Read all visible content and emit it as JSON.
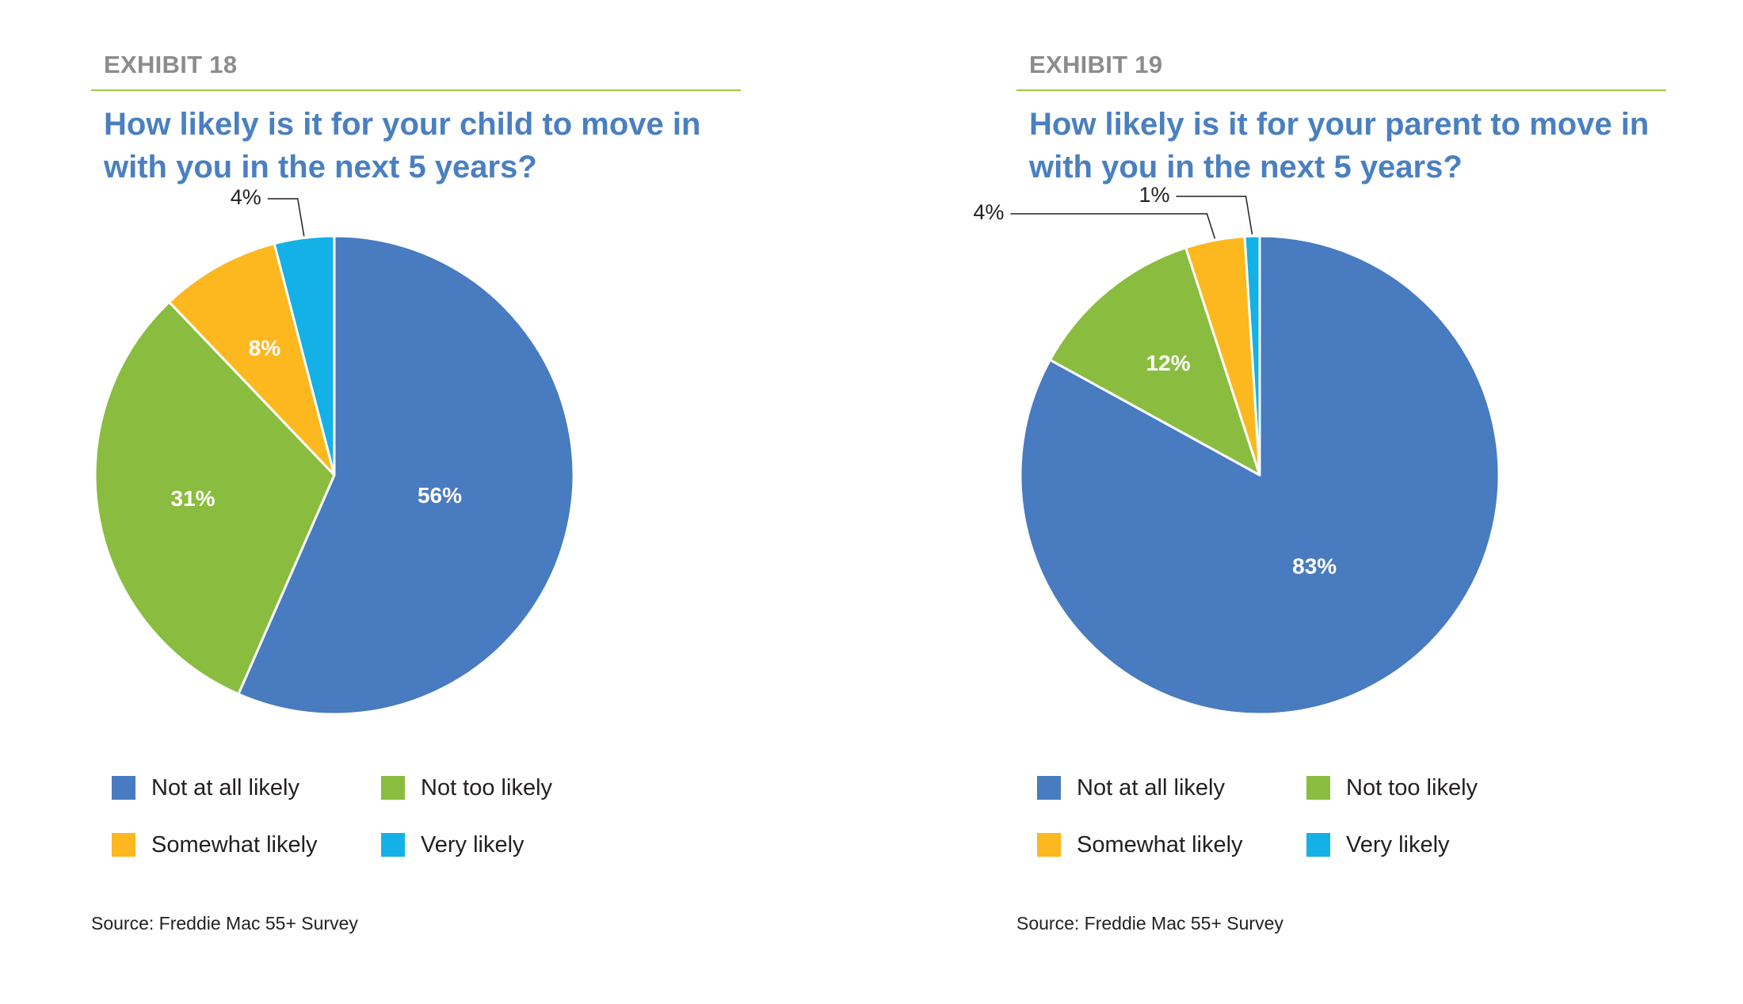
{
  "legend": [
    {
      "label": "Not at all likely",
      "color": "#487bbf"
    },
    {
      "label": "Not too likely",
      "color": "#8abd3f"
    },
    {
      "label": "Somewhat likely",
      "color": "#fdb71f"
    },
    {
      "label": "Very likely",
      "color": "#14b1e7"
    }
  ],
  "source": "Source: Freddie Mac 55+ Survey",
  "chart_data": [
    {
      "type": "pie",
      "exhibit": "EXHIBIT 18",
      "title": "How likely is it for your child to move in with you in the next 5 years?",
      "slices": [
        {
          "name": "Not at all likely",
          "value": 56,
          "label": "56%"
        },
        {
          "name": "Not too likely",
          "value": 31,
          "label": "31%"
        },
        {
          "name": "Somewhat likely",
          "value": 8,
          "label": "8%"
        },
        {
          "name": "Very likely",
          "value": 4,
          "label": "4%"
        }
      ]
    },
    {
      "type": "pie",
      "exhibit": "EXHIBIT 19",
      "title": "How likely is it for your parent to move in with you in the next 5 years?",
      "slices": [
        {
          "name": "Not at all likely",
          "value": 83,
          "label": "83%"
        },
        {
          "name": "Not too likely",
          "value": 12,
          "label": "12%"
        },
        {
          "name": "Somewhat likely",
          "value": 4,
          "label": "4%"
        },
        {
          "name": "Very likely",
          "value": 1,
          "label": "1%"
        }
      ]
    }
  ]
}
